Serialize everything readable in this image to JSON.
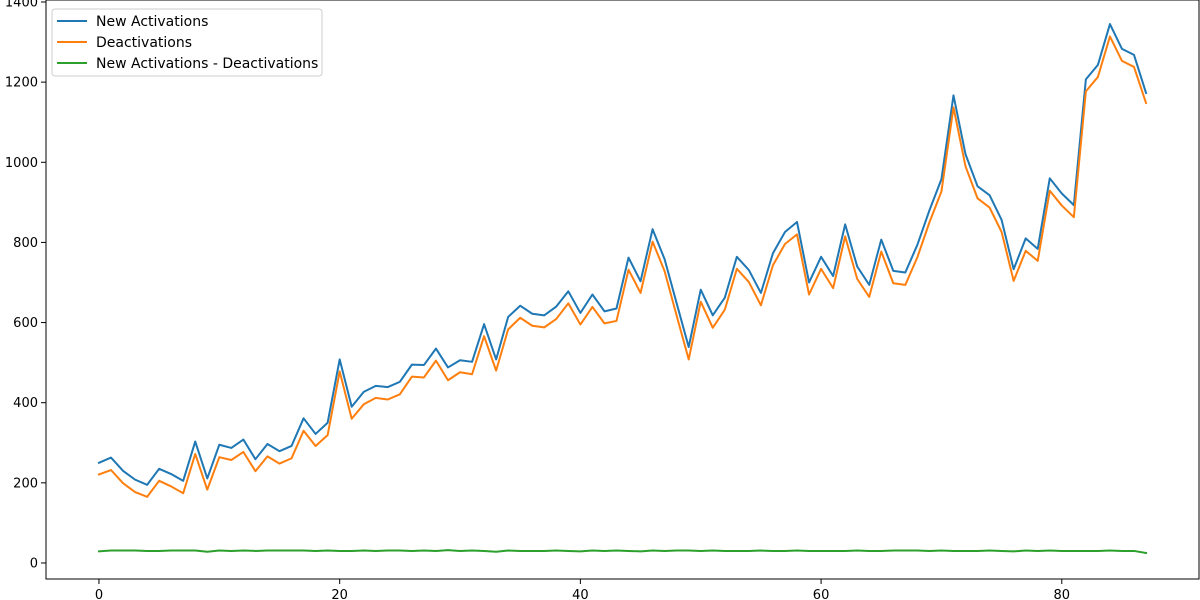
{
  "chart_data": {
    "type": "line",
    "title": "",
    "xlabel": "",
    "ylabel": "",
    "xlim": [
      -4.4,
      91.4
    ],
    "ylim": [
      -40,
      1405
    ],
    "xticks": [
      0,
      20,
      40,
      60,
      80
    ],
    "yticks": [
      0,
      200,
      400,
      600,
      800,
      1000,
      1200,
      1400
    ],
    "grid": false,
    "legend_position": "top-left",
    "series": [
      {
        "name": "New Activations",
        "color": "#1f77b4",
        "values": [
          250,
          263,
          230,
          208,
          195,
          235,
          222,
          205,
          303,
          211,
          295,
          287,
          308,
          259,
          297,
          279,
          292,
          361,
          322,
          350,
          508,
          390,
          427,
          442,
          439,
          452,
          495,
          494,
          535,
          488,
          506,
          502,
          596,
          508,
          614,
          642,
          622,
          618,
          640,
          678,
          624,
          670,
          628,
          635,
          762,
          703,
          833,
          758,
          648,
          539,
          682,
          618,
          662,
          764,
          731,
          674,
          773,
          826,
          851,
          700,
          764,
          716,
          845,
          740,
          694,
          807,
          729,
          725,
          794,
          880,
          958,
          1167,
          1020,
          940,
          918,
          856,
          733,
          810,
          784,
          960,
          922,
          893,
          1207,
          1243,
          1345,
          1283,
          1268,
          1173
        ]
      },
      {
        "name": "Deactivations",
        "color": "#ff7f0e",
        "values": [
          221,
          232,
          199,
          177,
          165,
          205,
          191,
          174,
          272,
          183,
          264,
          257,
          277,
          229,
          266,
          248,
          261,
          330,
          292,
          319,
          478,
          360,
          396,
          412,
          408,
          421,
          465,
          463,
          505,
          456,
          476,
          471,
          566,
          480,
          583,
          612,
          592,
          588,
          609,
          648,
          595,
          639,
          598,
          604,
          732,
          674,
          802,
          728,
          617,
          508,
          652,
          587,
          632,
          734,
          701,
          643,
          743,
          796,
          820,
          670,
          734,
          686,
          815,
          709,
          664,
          777,
          698,
          694,
          763,
          850,
          927,
          1137,
          990,
          910,
          887,
          826,
          704,
          779,
          754,
          929,
          892,
          863,
          1177,
          1213,
          1314,
          1253,
          1238,
          1148
        ]
      },
      {
        "name": "New Activations - Deactivations",
        "color": "#2ca02c",
        "values": [
          29,
          31,
          31,
          31,
          30,
          30,
          31,
          31,
          31,
          28,
          31,
          30,
          31,
          30,
          31,
          31,
          31,
          31,
          30,
          31,
          30,
          30,
          31,
          30,
          31,
          31,
          30,
          31,
          30,
          32,
          30,
          31,
          30,
          28,
          31,
          30,
          30,
          30,
          31,
          30,
          29,
          31,
          30,
          31,
          30,
          29,
          31,
          30,
          31,
          31,
          30,
          31,
          30,
          30,
          30,
          31,
          30,
          30,
          31,
          30,
          30,
          30,
          30,
          31,
          30,
          30,
          31,
          31,
          31,
          30,
          31,
          30,
          30,
          30,
          31,
          30,
          29,
          31,
          30,
          31,
          30,
          30,
          30,
          30,
          31,
          30,
          30,
          25
        ]
      }
    ]
  }
}
